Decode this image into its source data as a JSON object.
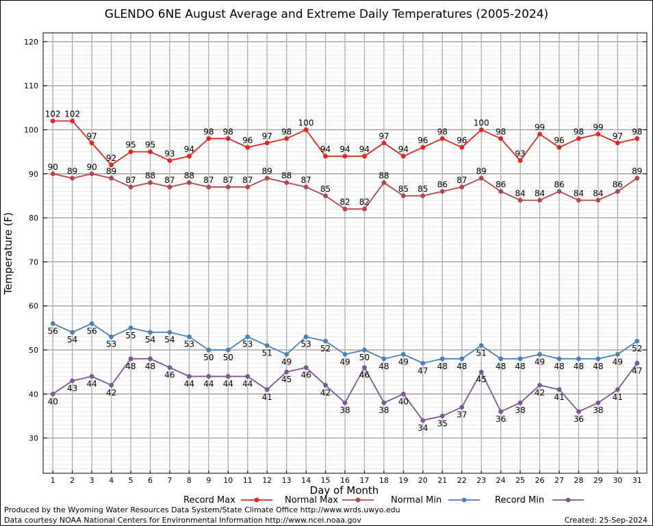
{
  "chart_data": {
    "type": "line",
    "title": "GLENDO 6NE August Average and Extreme Daily Temperatures (2005-2024)",
    "xlabel": "Day of Month",
    "ylabel": "Temperature (F)",
    "x": [
      1,
      2,
      3,
      4,
      5,
      6,
      7,
      8,
      9,
      10,
      11,
      12,
      13,
      14,
      15,
      16,
      17,
      18,
      19,
      20,
      21,
      22,
      23,
      24,
      25,
      26,
      27,
      28,
      29,
      30,
      31
    ],
    "ylim": [
      22,
      122
    ],
    "yticks": [
      30,
      40,
      50,
      60,
      70,
      80,
      90,
      100,
      110,
      120
    ],
    "grid": true,
    "legend_position": "bottom",
    "series": [
      {
        "name": "Record Max",
        "color": "#e8231e",
        "label_position": "above",
        "values": [
          102,
          102,
          97,
          92,
          95,
          95,
          93,
          94,
          98,
          98,
          96,
          97,
          98,
          100,
          94,
          94,
          94,
          97,
          94,
          96,
          98,
          96,
          100,
          98,
          93,
          99,
          96,
          98,
          99,
          97,
          98
        ]
      },
      {
        "name": "Normal Max",
        "color": "#b5474a",
        "label_position": "above",
        "values": [
          90,
          89,
          90,
          89,
          87,
          88,
          87,
          88,
          87,
          87,
          87,
          89,
          88,
          87,
          85,
          82,
          82,
          88,
          85,
          85,
          86,
          87,
          89,
          86,
          84,
          84,
          86,
          84,
          84,
          86,
          89
        ]
      },
      {
        "name": "Normal Min",
        "color": "#4a81b8",
        "label_position": "below",
        "values": [
          56,
          54,
          56,
          53,
          55,
          54,
          54,
          53,
          50,
          50,
          53,
          51,
          49,
          53,
          52,
          49,
          50,
          48,
          49,
          47,
          48,
          48,
          51,
          48,
          48,
          49,
          48,
          48,
          48,
          49,
          52
        ]
      },
      {
        "name": "Record Min",
        "color": "#7c559a",
        "label_position": "below",
        "values": [
          40,
          43,
          44,
          42,
          48,
          48,
          46,
          44,
          44,
          44,
          44,
          41,
          45,
          46,
          42,
          38,
          46,
          38,
          40,
          34,
          35,
          37,
          45,
          36,
          38,
          42,
          41,
          36,
          38,
          41,
          47
        ]
      }
    ]
  },
  "footer": {
    "produced_by": "Produced by the Wyoming Water Resources Data System/State Climate Office http://www.wrds.uwyo.edu",
    "data_courtesy": "Data courtesy NOAA National Centers for Environmental Information http://www.ncei.noaa.gov",
    "created": "Created:  25-Sep-2024"
  }
}
